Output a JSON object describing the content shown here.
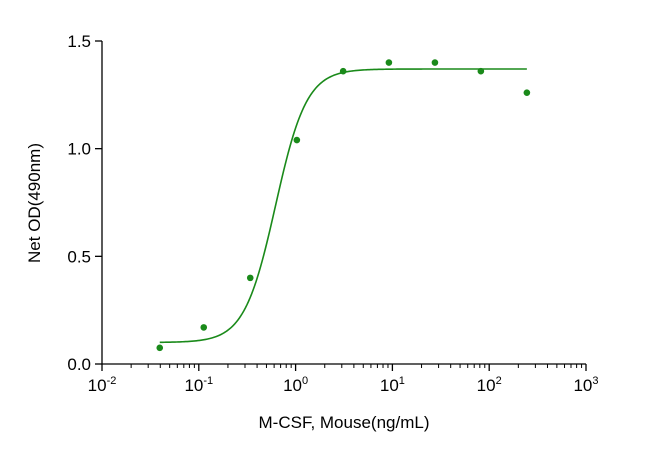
{
  "chart_data": {
    "type": "scatter",
    "xlabel": "M-CSF, Mouse(ng/mL)",
    "ylabel": "Net OD(490nm)",
    "x_scale": "log",
    "xlim": [
      0.01,
      1000
    ],
    "ylim": [
      0.0,
      1.5
    ],
    "grid": false,
    "x_ticks": [
      {
        "value": 0.01,
        "base": "10",
        "exp": "-2"
      },
      {
        "value": 0.1,
        "base": "10",
        "exp": "-1"
      },
      {
        "value": 1,
        "base": "10",
        "exp": "0"
      },
      {
        "value": 10,
        "base": "10",
        "exp": "1"
      },
      {
        "value": 100,
        "base": "10",
        "exp": "2"
      },
      {
        "value": 1000,
        "base": "10",
        "exp": "3"
      }
    ],
    "y_ticks": [
      {
        "value": 0.0,
        "label": "0.0"
      },
      {
        "value": 0.5,
        "label": "0.5"
      },
      {
        "value": 1.0,
        "label": "1.0"
      },
      {
        "value": 1.5,
        "label": "1.5"
      }
    ],
    "series": [
      {
        "points": [
          {
            "x": 0.0395,
            "y": 0.075
          },
          {
            "x": 0.1125,
            "y": 0.17
          },
          {
            "x": 0.34,
            "y": 0.4
          },
          {
            "x": 1.03,
            "y": 1.04
          },
          {
            "x": 3.1,
            "y": 1.36
          },
          {
            "x": 9.2,
            "y": 1.4
          },
          {
            "x": 27.5,
            "y": 1.4
          },
          {
            "x": 82,
            "y": 1.36
          },
          {
            "x": 245,
            "y": 1.26
          }
        ],
        "fit": {
          "model": "4PL",
          "bottom": 0.1,
          "top": 1.37,
          "ec50": 0.62,
          "hill": 2.7,
          "x_from": 0.0395,
          "x_to": 245
        },
        "color": "#1a8a1a"
      }
    ]
  }
}
